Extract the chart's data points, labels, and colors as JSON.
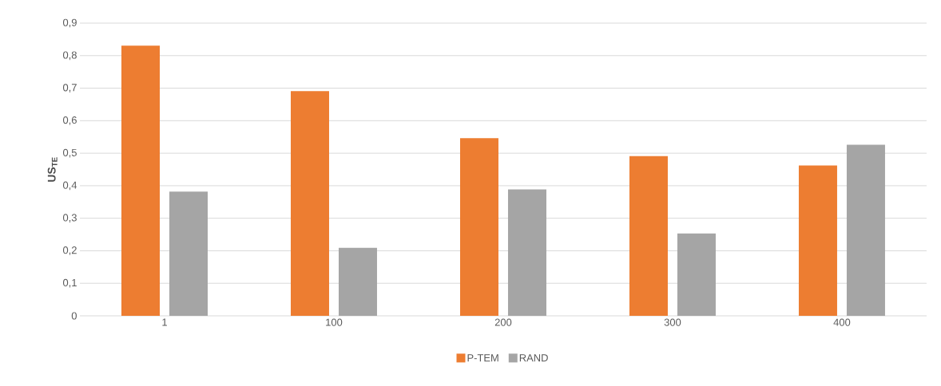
{
  "chart_data": {
    "type": "bar",
    "ylabel": "US$_{TE}$",
    "categories": [
      "1",
      "100",
      "200",
      "300",
      "400"
    ],
    "series": [
      {
        "name": "P-TEM",
        "color": "#ed7d31",
        "values": [
          0.831,
          0.691,
          0.546,
          0.491,
          0.462
        ]
      },
      {
        "name": "RAND",
        "color": "#a5a5a5",
        "values": [
          0.382,
          0.209,
          0.389,
          0.253,
          0.526
        ]
      }
    ],
    "ylim": [
      0,
      0.9
    ],
    "yticks": [
      0,
      {
        "value": 0.1,
        "label": "0,1"
      },
      {
        "value": 0.2,
        "label": "0,2"
      },
      {
        "value": 0.3,
        "label": "0,3"
      },
      {
        "value": 0.4,
        "label": "0,4"
      },
      {
        "value": 0.5,
        "label": "0,5"
      },
      {
        "value": 0.6,
        "label": "0,6"
      },
      {
        "value": 0.7,
        "label": "0,7"
      },
      {
        "value": 0.8,
        "label": "0,8"
      },
      {
        "value": 0.9,
        "label": "0,9"
      }
    ],
    "grid": "y",
    "legend": "bottom"
  }
}
